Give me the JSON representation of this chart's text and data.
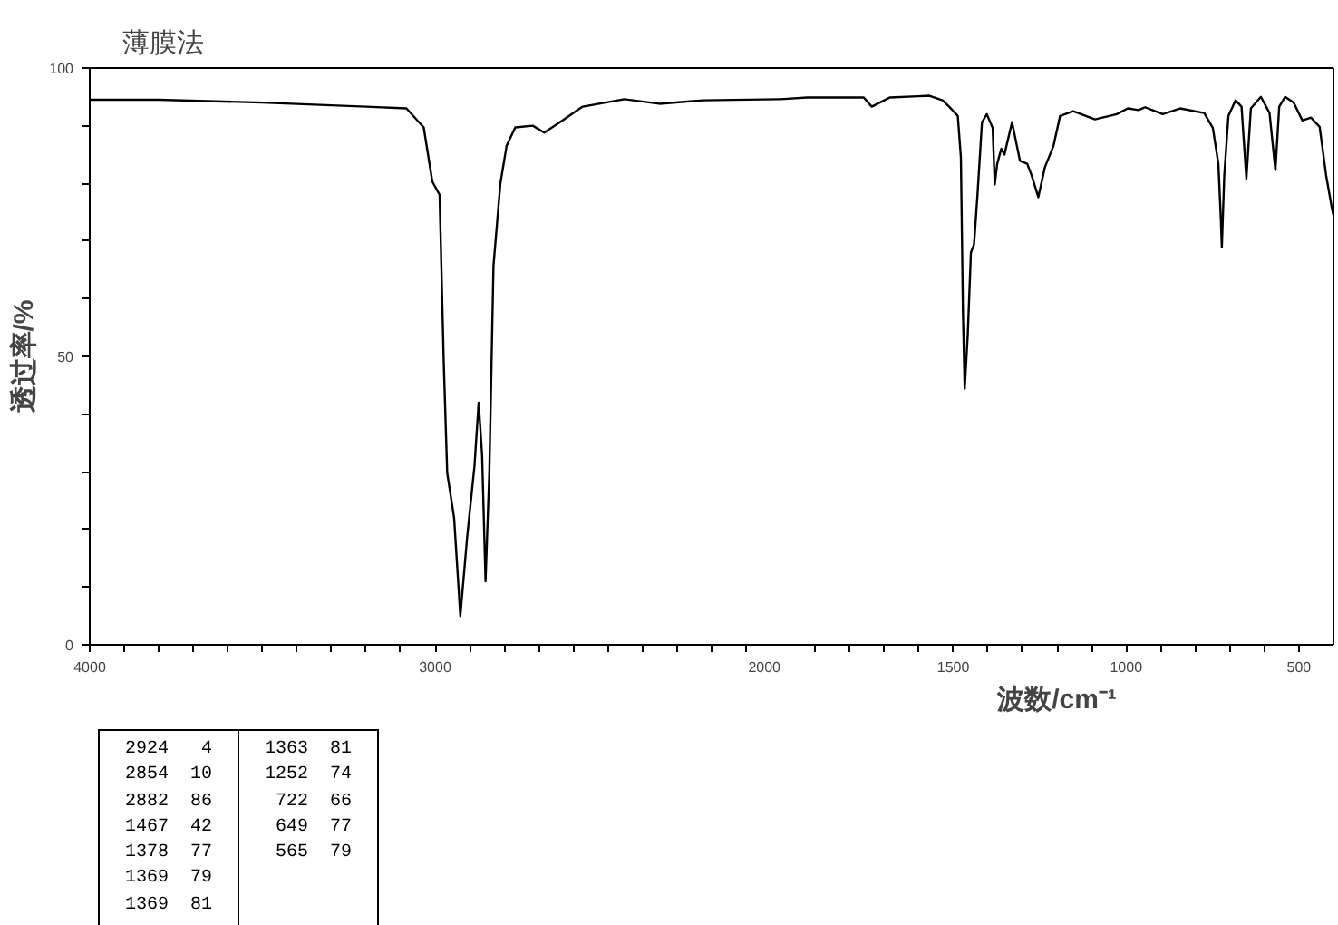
{
  "chart_data": [
    {
      "type": "line",
      "title": "薄膜法",
      "ylabel": "透过率/%",
      "xlim": [
        4000,
        2000
      ],
      "ylim": [
        0,
        100
      ],
      "tick_labels": "xy",
      "xticks": [
        4000,
        {
          "value": 3900,
          "label": null
        },
        {
          "value": 3800,
          "label": null
        },
        {
          "value": 3700,
          "label": null
        },
        {
          "value": 3600,
          "label": null
        },
        {
          "value": 3500,
          "label": null
        },
        {
          "value": 3400,
          "label": null
        },
        {
          "value": 3300,
          "label": null
        },
        {
          "value": 3200,
          "label": null
        },
        {
          "value": 3100,
          "label": null
        },
        3000,
        {
          "value": 2900,
          "label": null
        },
        {
          "value": 2800,
          "label": null
        },
        {
          "value": 2700,
          "label": null
        },
        {
          "value": 2600,
          "label": null
        },
        {
          "value": 2500,
          "label": null
        },
        {
          "value": 2400,
          "label": null
        },
        {
          "value": 2300,
          "label": null
        },
        {
          "value": 2200,
          "label": null
        },
        {
          "value": 2100,
          "label": null
        },
        2000
      ],
      "yticks": [
        0,
        {
          "value": 10,
          "label": null
        },
        {
          "value": 20,
          "label": null
        },
        {
          "value": 30,
          "label": null
        },
        {
          "value": 40,
          "label": null
        },
        50,
        {
          "value": 60,
          "label": null
        },
        {
          "value": 70,
          "label": null
        },
        {
          "value": 80,
          "label": null
        },
        {
          "value": 90,
          "label": null
        },
        100
      ],
      "series": [
        {
          "color": "#000000",
          "x": [
            4000,
            3800,
            3500,
            3200,
            3083,
            3033,
            3008,
            2987,
            2975,
            2965,
            2945,
            2927,
            2907,
            2886,
            2874,
            2864,
            2854,
            2843,
            2831,
            2811,
            2793,
            2768,
            2717,
            2684,
            2629,
            2573,
            2452,
            2351,
            2225,
            2000
          ],
          "values": [
            94.5,
            94.5,
            94,
            93.3,
            93,
            89.7,
            80.3,
            78,
            49,
            29.8,
            22,
            5,
            18.8,
            31,
            42,
            33,
            11,
            30,
            65.7,
            80,
            86.5,
            89.7,
            90,
            88.8,
            91,
            93.3,
            94.6,
            93.8,
            94.4,
            94.6
          ]
        }
      ]
    },
    {
      "type": "line",
      "xlabel": "波数/cm⁻¹",
      "xlim": [
        2000,
        400
      ],
      "ylim": [
        0,
        100
      ],
      "tick_labels": "x",
      "xticks": [
        {
          "value": 1900,
          "label": null
        },
        {
          "value": 1800,
          "label": null
        },
        {
          "value": 1700,
          "label": null
        },
        {
          "value": 1600,
          "label": null
        },
        1500,
        {
          "value": 1400,
          "label": null
        },
        {
          "value": 1300,
          "label": null
        },
        {
          "value": 1200,
          "label": null
        },
        {
          "value": 1100,
          "label": null
        },
        1000,
        {
          "value": 900,
          "label": null
        },
        {
          "value": 800,
          "label": null
        },
        {
          "value": 700,
          "label": null
        },
        {
          "value": 600,
          "label": null
        },
        500
      ],
      "annotations": [
        "2924 4",
        "2854 10",
        "2882 86",
        "1467 42",
        "1378 77",
        "1369 79",
        "1369 81",
        "1363 81",
        "1252 74",
        "722 66",
        "649 77",
        "565 79"
      ],
      "series": [
        {
          "color": "#000000",
          "x": [
            2000,
            1923,
            1784,
            1759,
            1736,
            1683,
            1569,
            1531,
            1512,
            1487,
            1478,
            1472,
            1467,
            1458,
            1449,
            1440,
            1430,
            1417,
            1403,
            1386,
            1380,
            1373,
            1361,
            1352,
            1330,
            1307,
            1286,
            1273,
            1254,
            1235,
            1210,
            1191,
            1153,
            1090,
            1027,
            995,
            964,
            945,
            894,
            844,
            774,
            749,
            733,
            726,
            723,
            716,
            704,
            683,
            666,
            652,
            639,
            610,
            585,
            568,
            557,
            540,
            515,
            490,
            465,
            440,
            421,
            404,
            400
          ],
          "values": [
            94.6,
            94.9,
            94.9,
            94.9,
            93.3,
            94.9,
            95.2,
            94.4,
            93.3,
            91.7,
            84.5,
            57.5,
            44.4,
            54,
            68,
            69.4,
            78,
            90.6,
            92,
            89.6,
            79.8,
            83.4,
            86,
            85,
            90.6,
            83.9,
            83.4,
            81.3,
            77.6,
            82.8,
            86.5,
            91.7,
            92.5,
            91.1,
            92,
            93,
            92.7,
            93.2,
            92,
            93,
            92.2,
            89.6,
            83.4,
            74,
            68.9,
            81.3,
            91.7,
            94.4,
            93.3,
            80.8,
            93,
            95,
            92.2,
            82.3,
            93.3,
            95,
            94,
            90.9,
            91.4,
            89.8,
            81.3,
            75.5,
            74.5
          ]
        }
      ]
    }
  ]
}
